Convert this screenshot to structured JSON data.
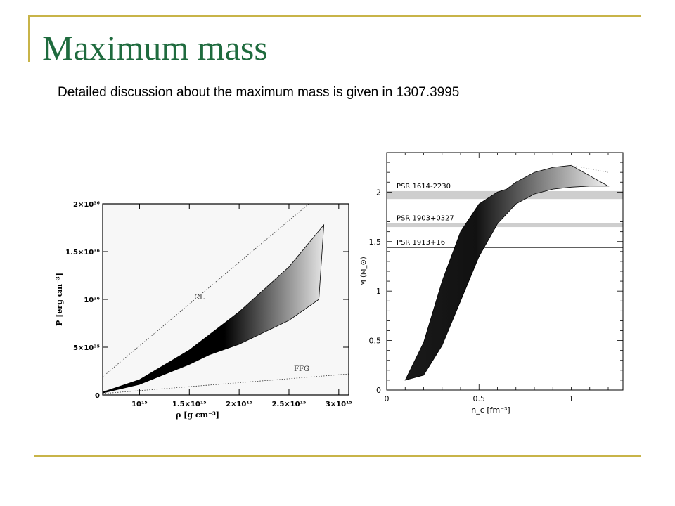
{
  "slide": {
    "title": "Maximum mass",
    "subtitle": "Detailed discussion about the maximum mass is given in 1307.3995",
    "colors": {
      "title": "#1f6b3e",
      "rule": "#c8b448",
      "accent_green": "#1f6b3e"
    }
  },
  "chart_data": [
    {
      "type": "area",
      "xlabel": "ρ [g cm⁻³]",
      "ylabel": "P [erg cm⁻³]",
      "xlim": [
        630000000000000.0,
        3100000000000000.0
      ],
      "ylim": [
        0,
        2e+36
      ],
      "x_ticks": [
        {
          "value": 1000000000000000.0,
          "label": "10¹⁵"
        },
        {
          "value": 1500000000000000.0,
          "label": "1.5×10¹⁵"
        },
        {
          "value": 2000000000000000.0,
          "label": "2×10¹⁵"
        },
        {
          "value": 2500000000000000.0,
          "label": "2.5×10¹⁵"
        },
        {
          "value": 3000000000000000.0,
          "label": "3×10¹⁵"
        }
      ],
      "y_ticks": [
        {
          "value": 0,
          "label": "0"
        },
        {
          "value": 5e+35,
          "label": "5×10³⁵"
        },
        {
          "value": 1e+36,
          "label": "10³⁶"
        },
        {
          "value": 1.5e+36,
          "label": "1.5×10³⁶"
        },
        {
          "value": 2e+36,
          "label": "2×10³⁶"
        }
      ],
      "bands": [
        {
          "upper": {
            "x": [
              630000000000000.0,
              1000000000000000.0,
              1500000000000000.0,
              2000000000000000.0,
              2500000000000000.0,
              2850000000000000.0
            ],
            "y": [
              3e+34,
              1.6e+35,
              4.7e+35,
              8.7e+35,
              1.34e+36,
              1.78e+36
            ]
          },
          "lower": {
            "x": [
              630000000000000.0,
              1000000000000000.0,
              1500000000000000.0,
              1700000000000000.0,
              2000000000000000.0,
              2500000000000000.0,
              2800000000000000.0,
              2850000000000000.0
            ],
            "y": [
              2e+34,
              1.1e+35,
              3.2e+35,
              4.2e+35,
              5.3e+35,
              7.8e+35,
              1e+36,
              1.78e+36
            ]
          }
        }
      ],
      "lines": [
        {
          "label": "CL",
          "style": "dotted",
          "x": [
            630000000000000.0,
            2700000000000000.0
          ],
          "y": [
            1.9e+35,
            2e+36
          ]
        },
        {
          "label": "FFG",
          "style": "dotted",
          "x": [
            630000000000000.0,
            3100000000000000.0
          ],
          "y": [
            1.5e+34,
            2.2e+35
          ]
        }
      ],
      "annotations": [
        {
          "text": "CL",
          "x": 1550000000000000.0,
          "y": 1e+36
        },
        {
          "text": "FFG",
          "x": 2550000000000000.0,
          "y": 2.5e+35
        }
      ]
    },
    {
      "type": "area",
      "xlabel": "n_c [fm⁻³]",
      "ylabel": "M (M_⊙)",
      "xlim": [
        0,
        1.28
      ],
      "ylim": [
        0,
        2.4
      ],
      "x_ticks": [
        {
          "value": 0,
          "label": "0"
        },
        {
          "value": 0.5,
          "label": "0.5"
        },
        {
          "value": 1,
          "label": "1"
        }
      ],
      "y_ticks": [
        {
          "value": 0,
          "label": "0"
        },
        {
          "value": 0.5,
          "label": "0.5"
        },
        {
          "value": 1,
          "label": "1"
        },
        {
          "value": 1.5,
          "label": "1.5"
        },
        {
          "value": 2,
          "label": "2"
        }
      ],
      "bands": [
        {
          "upper": {
            "x": [
              0.1,
              0.2,
              0.3,
              0.4,
              0.5,
              0.6,
              0.65,
              0.7,
              0.8,
              0.9,
              1.0
            ],
            "y": [
              0.1,
              0.48,
              1.1,
              1.6,
              1.88,
              2.0,
              2.03,
              2.1,
              2.2,
              2.25,
              2.27
            ]
          },
          "lower": {
            "x": [
              0.1,
              0.2,
              0.3,
              0.4,
              0.5,
              0.6,
              0.7,
              0.8,
              0.9,
              1.0,
              1.1,
              1.2
            ],
            "y": [
              0.1,
              0.15,
              0.45,
              0.9,
              1.35,
              1.68,
              1.88,
              1.98,
              2.03,
              2.05,
              2.06,
              2.06
            ]
          }
        }
      ],
      "lines": [
        {
          "label": "",
          "style": "dotted",
          "x": [
            1.0,
            1.2
          ],
          "y": [
            2.27,
            2.2
          ]
        }
      ],
      "constraints": [
        {
          "name": "PSR 1614-2230",
          "mass": 1.97,
          "width": 0.08
        },
        {
          "name": "PSR 1903+0327",
          "mass": 1.667,
          "width": 0.04
        },
        {
          "name": "PSR 1913+16",
          "mass": 1.44,
          "width": 0.0
        }
      ]
    }
  ]
}
